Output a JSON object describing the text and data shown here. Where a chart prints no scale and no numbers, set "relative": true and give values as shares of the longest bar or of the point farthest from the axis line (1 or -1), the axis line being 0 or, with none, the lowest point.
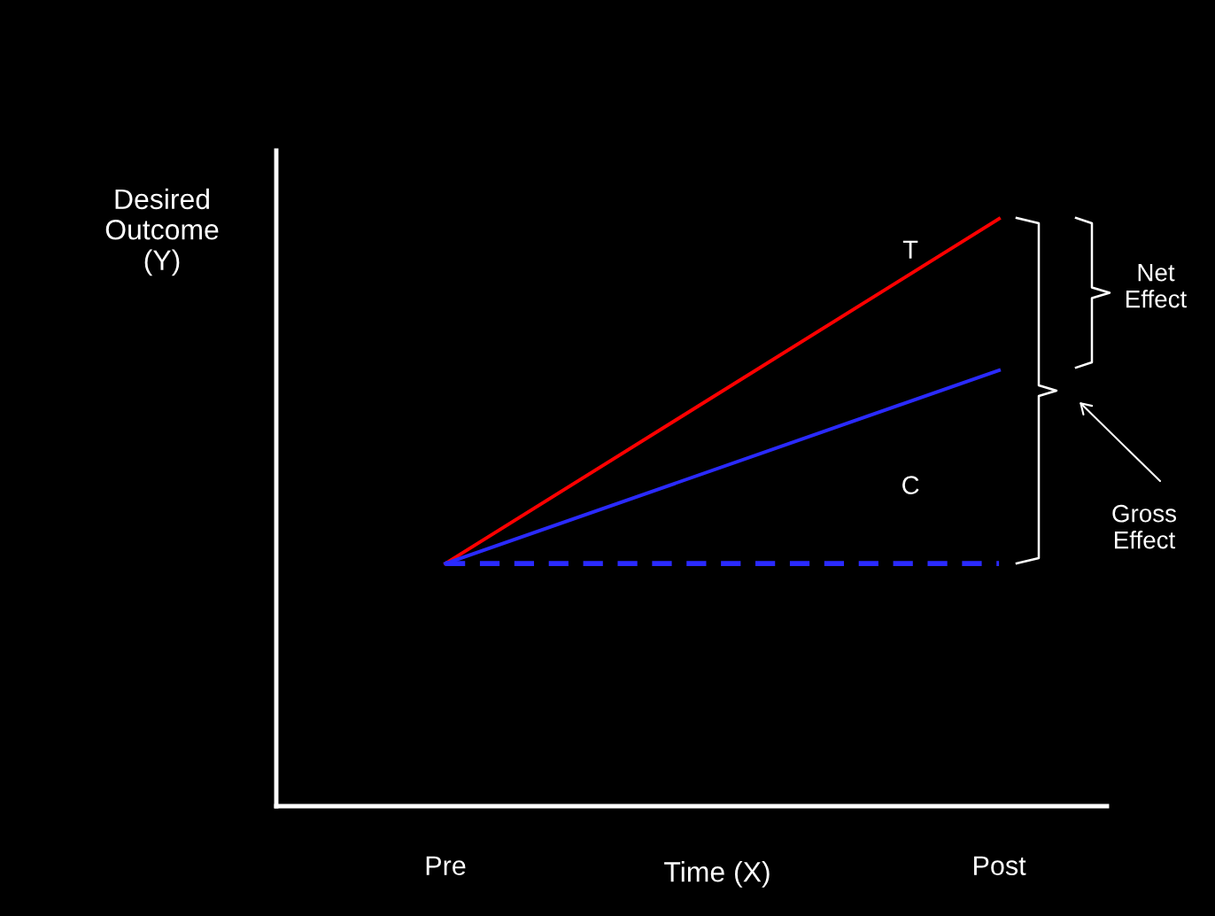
{
  "chart_data": {
    "type": "line",
    "relative": true,
    "xlabel": "Time (X)",
    "ylabel": "Desired\nOutcome\n(Y)",
    "categories": [
      "Pre",
      "Post"
    ],
    "series": [
      {
        "name": "T",
        "color": "#ff0000",
        "values": [
          0.413,
          1
        ],
        "line_style": "solid"
      },
      {
        "name": "C",
        "color": "#2a2aff",
        "values": [
          0.413,
          0.742
        ],
        "line_style": "solid"
      },
      {
        "color": "#2a2aff",
        "values": [
          0.413,
          0.413
        ],
        "line_style": "dashed"
      }
    ],
    "annotations": [
      "Net Effect",
      "Gross Effect"
    ],
    "grid": false,
    "legend": false,
    "marker": "none"
  }
}
